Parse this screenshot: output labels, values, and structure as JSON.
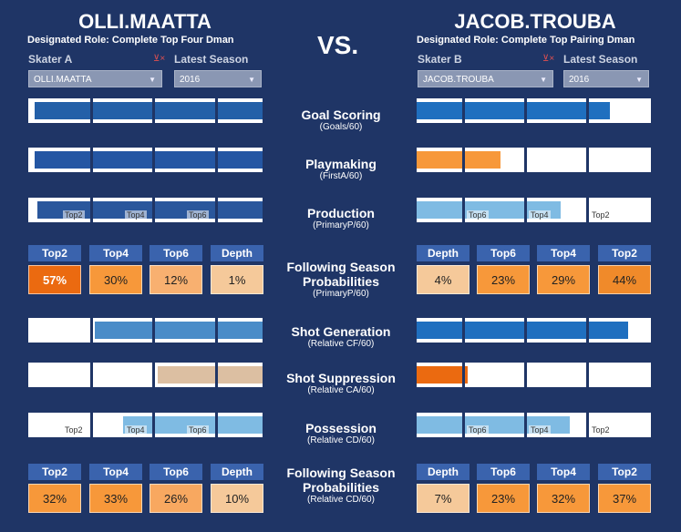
{
  "header": {
    "vs": "VS.",
    "skater_a": {
      "name": "OLLI.MAATTA",
      "role": "Designated Role: Complete Top Four Dman",
      "skater_label": "Skater A",
      "skater_value": "OLLI.MAATTA",
      "season_label": "Latest Season",
      "season_value": "2016"
    },
    "skater_b": {
      "name": "JACOB.TROUBA",
      "role": "Designated Role: Complete Top Pairing Dman",
      "skater_label": "Skater B",
      "skater_value": "JACOB.TROUBA",
      "season_label": "Latest Season",
      "season_value": "2016"
    }
  },
  "metrics": {
    "goal_scoring": {
      "title": "Goal Scoring",
      "subtitle": "(Goals/60)",
      "a_fill": 0.98,
      "b_fill": 0.83,
      "a_color": "#2460a8",
      "b_color": "#1f6fbf"
    },
    "playmaking": {
      "title": "Playmaking",
      "subtitle": "(FirstA/60)",
      "a_fill": 0.98,
      "b_fill": 0.36,
      "a_color": "#2456a3",
      "b_color": "#f7983a"
    },
    "production": {
      "title": "Production",
      "subtitle": "(PrimaryP/60)",
      "a_fill": 0.97,
      "b_fill": 0.62,
      "a_color": "#2a579c",
      "b_color": "#7fbbe3",
      "a_labels": [
        "Top2",
        "Top4",
        "Top6"
      ],
      "b_labels": [
        "Top6",
        "Top4",
        "Top2"
      ]
    },
    "shot_generation": {
      "title": "Shot Generation",
      "subtitle": "(Relative CF/60)",
      "a_fill": 0.72,
      "b_fill": 0.91,
      "a_color": "#4a8cc8",
      "b_color": "#1f6fbf"
    },
    "shot_suppression": {
      "title": "Shot Suppression",
      "subtitle": "(Relative CA/60)",
      "a_fill": 0.45,
      "b_fill": 0.22,
      "a_color": "#dcbfa2",
      "b_color": "#eb6a10"
    },
    "possession": {
      "title": "Possession",
      "subtitle": "(Relative CD/60)",
      "a_fill": 0.6,
      "b_fill": 0.66,
      "a_color": "#7fbbe3",
      "b_color": "#7fbbe3",
      "a_labels": [
        "Top2",
        "Top4",
        "Top6"
      ],
      "b_labels": [
        "Top6",
        "Top4",
        "Top2"
      ]
    }
  },
  "probabilities_1": {
    "title_line1": "Following Season",
    "title_line2": "Probabilities",
    "subtitle": "(PrimaryP/60)",
    "a_headers": [
      "Top2",
      "Top4",
      "Top6",
      "Depth"
    ],
    "a_values": [
      "57%",
      "30%",
      "12%",
      "1%"
    ],
    "a_colors": [
      "#eb6a10",
      "#f7983a",
      "#f8b070",
      "#f5c99a"
    ],
    "b_headers": [
      "Depth",
      "Top6",
      "Top4",
      "Top2"
    ],
    "b_values": [
      "4%",
      "23%",
      "29%",
      "44%"
    ],
    "b_colors": [
      "#f5c99a",
      "#f7983a",
      "#f7983a",
      "#f08a2a"
    ]
  },
  "probabilities_2": {
    "title_line1": "Following Season",
    "title_line2": "Probabilities",
    "subtitle": "(Relative CD/60)",
    "a_headers": [
      "Top2",
      "Top4",
      "Top6",
      "Depth"
    ],
    "a_values": [
      "32%",
      "33%",
      "26%",
      "10%"
    ],
    "a_colors": [
      "#f7983a",
      "#f7983a",
      "#f8a860",
      "#f5c99a"
    ],
    "b_headers": [
      "Depth",
      "Top6",
      "Top4",
      "Top2"
    ],
    "b_values": [
      "7%",
      "23%",
      "32%",
      "37%"
    ],
    "b_colors": [
      "#f5c99a",
      "#f7983a",
      "#f7983a",
      "#f7983a"
    ]
  }
}
